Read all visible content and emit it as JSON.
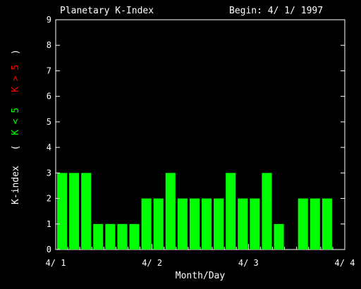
{
  "chart_data": {
    "type": "bar",
    "title": "Planetary K-Index",
    "begin_label": "Begin: 4/ 1/ 1997",
    "xlabel": "Month/Day",
    "ylabel": {
      "main": "K-index",
      "open_paren": "(",
      "low": "K < 5",
      "high": "K > 5",
      "close_paren": ")"
    },
    "x_tick_labels": [
      "4/ 1",
      "4/ 2",
      "4/ 3",
      "4/ 4"
    ],
    "y_tick_labels": [
      "0",
      "1",
      "2",
      "3",
      "4",
      "5",
      "6",
      "7",
      "8",
      "9"
    ],
    "ylim": [
      0,
      9
    ],
    "days_shown": 3,
    "bars_per_day": 8,
    "values": [
      3,
      3,
      3,
      1,
      1,
      1,
      1,
      2,
      2,
      3,
      2,
      2,
      2,
      2,
      3,
      2,
      2,
      3,
      1,
      0,
      2,
      2,
      2,
      0
    ],
    "colors": {
      "background": "#000000",
      "axes": "#ffffff",
      "low_bar": "#00ff00",
      "high_bar": "#ff0000"
    }
  }
}
